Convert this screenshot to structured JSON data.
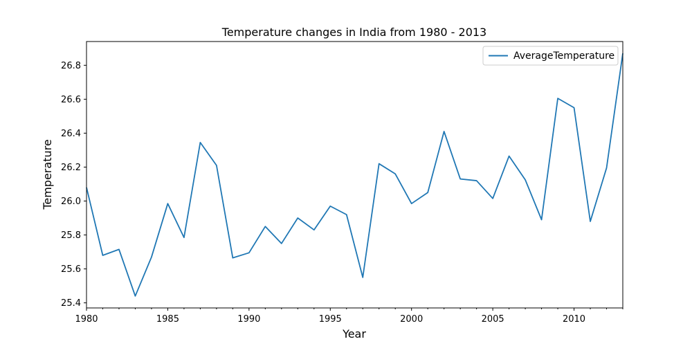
{
  "chart_data": {
    "type": "line",
    "title": "Temperature changes in India from 1980 - 2013",
    "xlabel": "Year",
    "ylabel": "Temperature",
    "xlim": [
      1980,
      2013
    ],
    "ylim": [
      25.37,
      26.94
    ],
    "xticks": [
      1980,
      1985,
      1990,
      1995,
      2000,
      2005,
      2010
    ],
    "yticks": [
      25.4,
      25.6,
      25.8,
      26.0,
      26.2,
      26.4,
      26.6,
      26.8
    ],
    "grid": false,
    "legend_position": "top-right",
    "series": [
      {
        "name": "AverageTemperature",
        "color": "#1f77b4",
        "x": [
          1980,
          1981,
          1982,
          1983,
          1984,
          1985,
          1986,
          1987,
          1988,
          1989,
          1990,
          1991,
          1992,
          1993,
          1994,
          1995,
          1996,
          1997,
          1998,
          1999,
          2000,
          2001,
          2002,
          2003,
          2004,
          2005,
          2006,
          2007,
          2008,
          2009,
          2010,
          2011,
          2012,
          2013
        ],
        "y": [
          26.08,
          25.68,
          25.715,
          25.44,
          25.67,
          25.985,
          25.785,
          26.345,
          26.21,
          25.665,
          25.695,
          25.85,
          25.75,
          25.9,
          25.83,
          25.97,
          25.92,
          25.55,
          26.22,
          26.16,
          25.985,
          26.05,
          26.41,
          26.13,
          26.12,
          26.015,
          26.265,
          26.125,
          25.89,
          26.605,
          26.55,
          25.88,
          26.195,
          26.87
        ]
      }
    ]
  }
}
